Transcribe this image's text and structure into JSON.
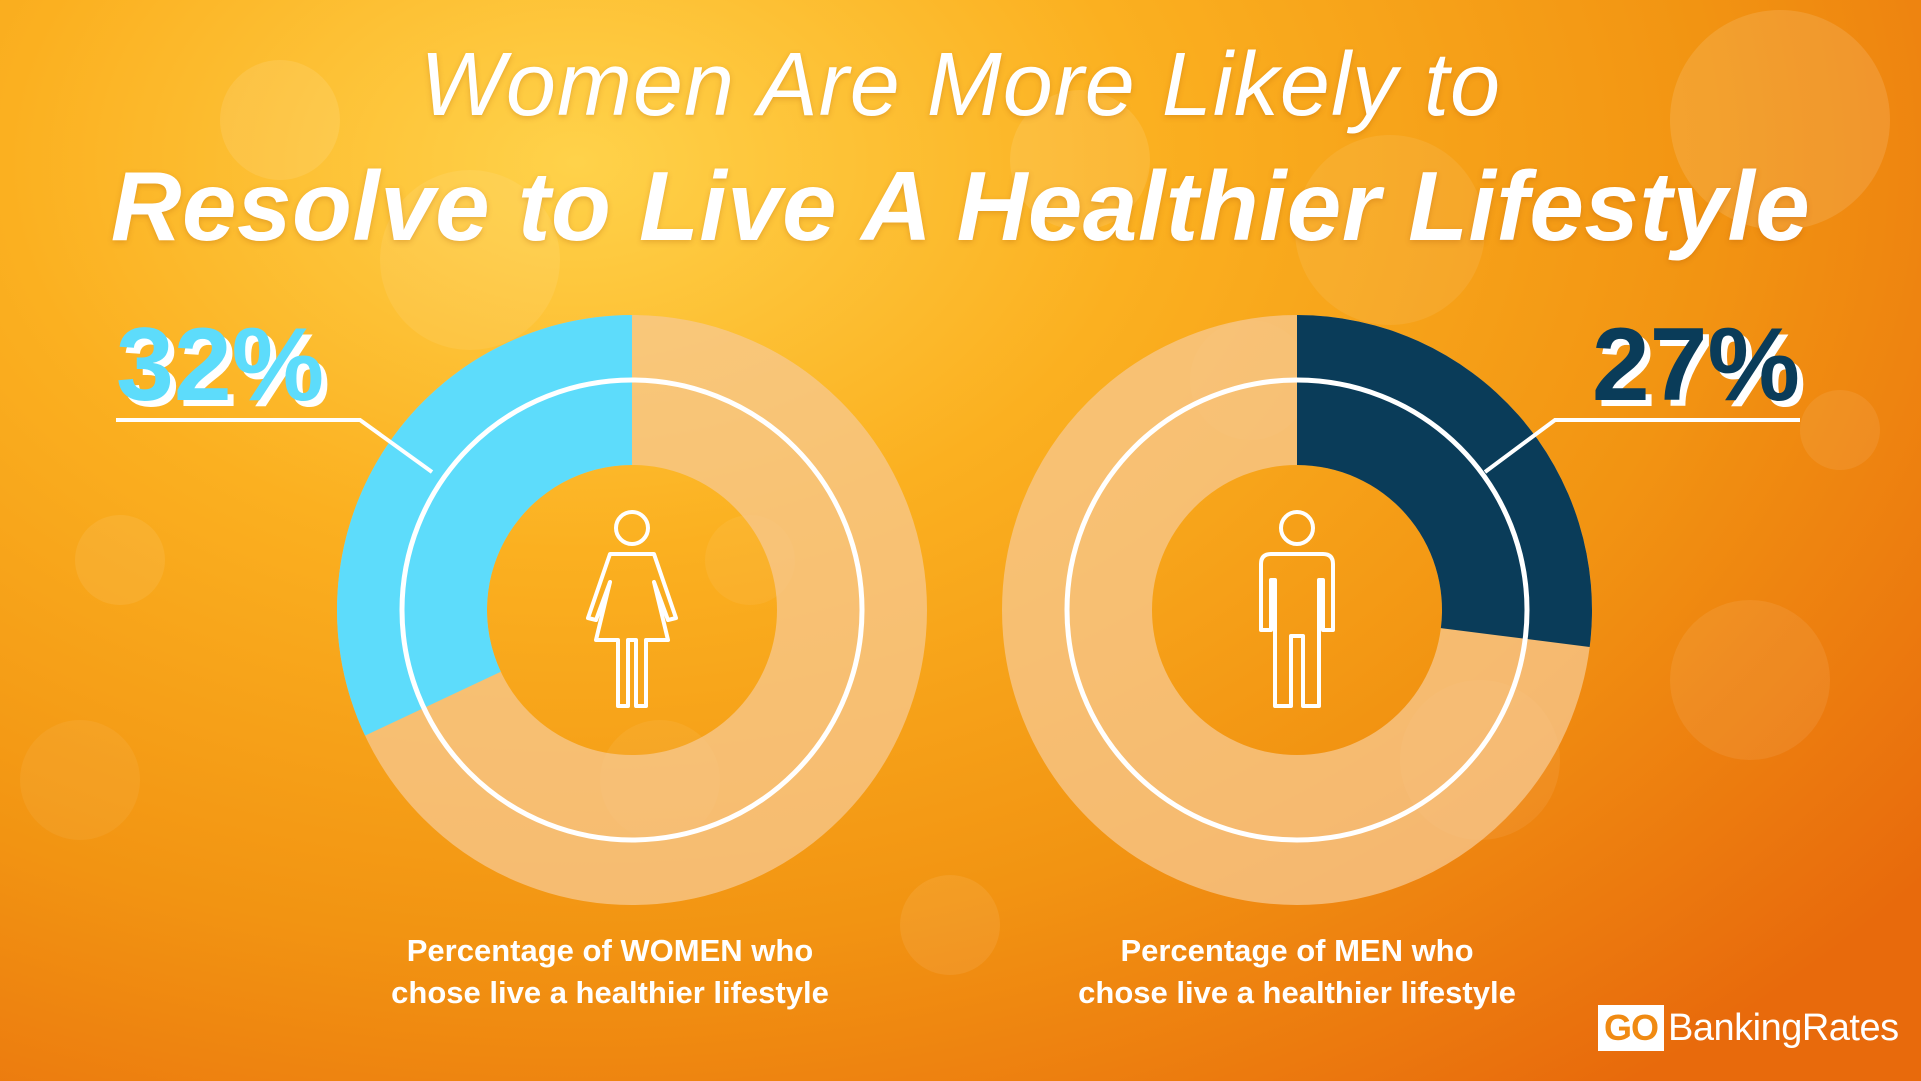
{
  "title": {
    "line1": "Women Are More Likely to",
    "line2": "Resolve to Live A Healthier Lifestyle"
  },
  "chart_data": [
    {
      "type": "pie",
      "variant": "donut",
      "group": "WOMEN",
      "value": 32,
      "value_label": "32%",
      "caption_prefix": "Percentage of ",
      "caption_highlight": "WOMEN",
      "caption_suffix": " who",
      "caption_line2": "chose live a healthier lifestyle",
      "color": "#5ddcfb",
      "label_color": "#5ddcfb",
      "label_side": "left",
      "icon": "woman-icon"
    },
    {
      "type": "pie",
      "variant": "donut",
      "group": "MEN",
      "value": 27,
      "value_label": "27%",
      "caption_prefix": "Percentage of ",
      "caption_highlight": "MEN",
      "caption_suffix": " who",
      "caption_line2": "chose live a healthier lifestyle",
      "color": "#0a3c59",
      "label_color": "#0a3c59",
      "label_side": "right",
      "icon": "man-icon"
    }
  ],
  "colors": {
    "track": "#f7c890",
    "ring": "#ffffff"
  },
  "logo": {
    "go": "GO",
    "rest": "BankingRates"
  }
}
